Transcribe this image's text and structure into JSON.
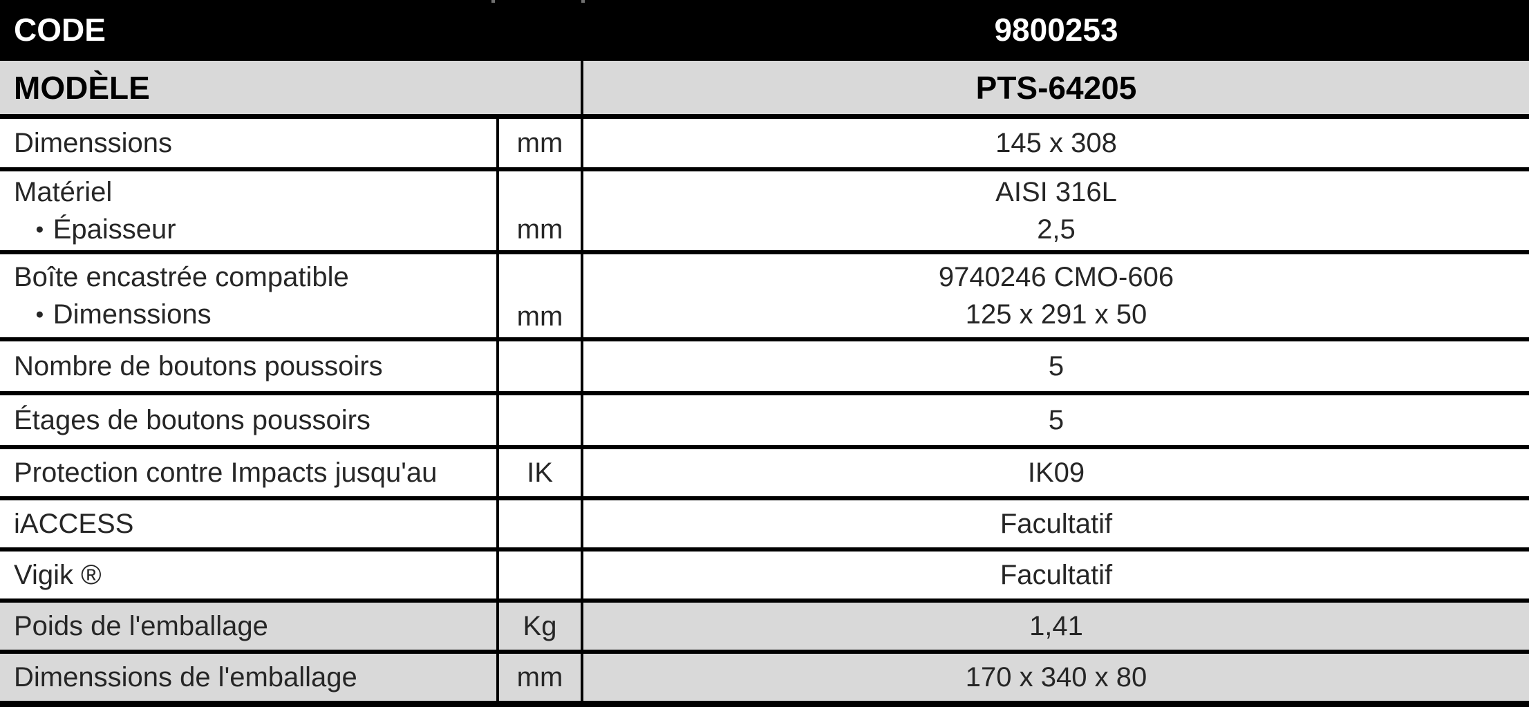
{
  "colors": {
    "header_bg": "#000000",
    "header_text": "#ffffff",
    "gray_row_bg": "#d9d9d9",
    "border": "#000000",
    "body_text": "#262626"
  },
  "glyphs": {
    "bullet": "●"
  },
  "table": {
    "rows": [
      {
        "label": "CODE",
        "value": "9800253"
      },
      {
        "label": "MODÈLE",
        "value": "PTS-64205"
      },
      {
        "label": "Dimenssions",
        "unit": "mm",
        "value": "145 x 308"
      },
      {
        "label": "Matériel",
        "label2": "Épaisseur",
        "unit": "mm",
        "value": "AISI 316L",
        "value2": "2,5"
      },
      {
        "label": "Boîte encastrée compatible",
        "label2": "Dimenssions",
        "unit": "mm",
        "value": "9740246 CMO-606",
        "value2": "125 x 291 x 50"
      },
      {
        "label": "Nombre de boutons poussoirs",
        "unit": "",
        "value": "5"
      },
      {
        "label": "Étages de boutons poussoirs",
        "unit": "",
        "value": "5"
      },
      {
        "label": "Protection contre Impacts jusqu'au",
        "unit": "IK",
        "value": "IK09"
      },
      {
        "label": "iACCESS",
        "unit": "",
        "value": "Facultatif"
      },
      {
        "label": "Vigik ®",
        "unit": "",
        "value": "Facultatif"
      },
      {
        "label": "Poids de l'emballage",
        "unit": "Kg",
        "value": "1,41"
      },
      {
        "label": "Dimenssions de l'emballage",
        "unit": "mm",
        "value": "170 x 340 x 80"
      }
    ]
  }
}
